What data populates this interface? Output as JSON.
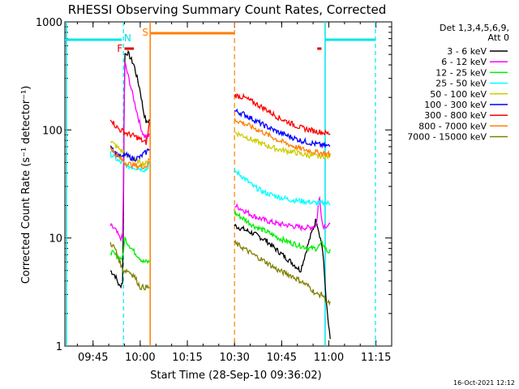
{
  "chart_data": {
    "type": "line",
    "title": "RHESSI Observing Summary Count Rates, Corrected",
    "xlabel": "Start Time (28-Sep-10 09:36:02)",
    "ylabel": "Corrected Count Rate (s⁻¹ detector⁻¹)",
    "yscale": "log",
    "ylim": [
      1,
      1000
    ],
    "xlim": [
      "09:36:02",
      "11:20:00"
    ],
    "x_ticks": [
      "09:45",
      "10:00",
      "10:15",
      "10:30",
      "10:45",
      "11:00",
      "11:15"
    ],
    "y_ticks": [
      "1",
      "10",
      "100",
      "1000"
    ],
    "footer_date": "16-Oct-2021 12:12",
    "legend": {
      "header": [
        "Det 1,3,4,5,6,9,",
        "Att 0"
      ],
      "placement": "right"
    },
    "flags": [
      {
        "label": "F",
        "color": "#dd0000"
      },
      {
        "label": "N",
        "color": "#00dddd"
      },
      {
        "label": "S",
        "color": "#ff7f00"
      }
    ],
    "markers": {
      "cyan_solid": [
        "09:36:30",
        "10:58:50"
      ],
      "cyan_dashed": [
        "09:54:40",
        "11:14:50"
      ],
      "orange_solid": [
        "10:03:10"
      ],
      "orange_dashed": [
        "10:30:00"
      ]
    },
    "series": [
      {
        "name": "3 - 6 keV",
        "color": "#000000",
        "segments": [
          {
            "t": [
              "09:50:30",
              "09:52:00",
              "09:53:30",
              "09:54:30",
              "09:55:00",
              "09:56:00",
              "09:58:00",
              "10:00:00",
              "10:01:00",
              "10:02:00",
              "10:03:00"
            ],
            "y": [
              5,
              4.5,
              3.5,
              4,
              500,
              520,
              400,
              230,
              150,
              115,
              125
            ]
          },
          {
            "t": [
              "10:30:00",
              "10:33:00",
              "10:36:00",
              "10:40:00",
              "10:44:00",
              "10:48:00",
              "10:51:00",
              "10:54:00",
              "10:56:00",
              "10:58:00",
              "10:59:30",
              "11:00:30"
            ],
            "y": [
              13,
              12,
              11,
              9.5,
              7.5,
              6,
              5,
              10,
              15,
              8,
              2,
              1.1
            ]
          }
        ]
      },
      {
        "name": "6 - 12 keV",
        "color": "#ff00ff",
        "segments": [
          {
            "t": [
              "09:50:30",
              "09:52:00",
              "09:53:30",
              "09:54:30",
              "09:55:00",
              "09:56:00",
              "09:58:00",
              "10:00:00",
              "10:01:00",
              "10:02:00",
              "10:03:00"
            ],
            "y": [
              13,
              12,
              10,
              10,
              430,
              330,
              190,
              110,
              90,
              85,
              90
            ]
          },
          {
            "t": [
              "10:30:00",
              "10:33:00",
              "10:36:00",
              "10:40:00",
              "10:44:00",
              "10:48:00",
              "10:51:00",
              "10:54:00",
              "10:56:00",
              "10:57:00",
              "10:58:00",
              "10:59:30",
              "11:00:30"
            ],
            "y": [
              20,
              18,
              16,
              14.5,
              13.5,
              13,
              12.5,
              12.5,
              13,
              25,
              13,
              13,
              13
            ]
          }
        ]
      },
      {
        "name": "12 - 25 keV",
        "color": "#00ee00",
        "segments": [
          {
            "t": [
              "09:50:30",
              "09:52:00",
              "09:53:30",
              "09:54:30",
              "09:55:00",
              "09:56:00",
              "09:58:00",
              "10:00:00",
              "10:01:00",
              "10:02:00",
              "10:03:00"
            ],
            "y": [
              7.5,
              7,
              6.5,
              6.5,
              10,
              9,
              7.5,
              6.5,
              6,
              6,
              6
            ]
          },
          {
            "t": [
              "10:30:00",
              "10:33:00",
              "10:36:00",
              "10:40:00",
              "10:44:00",
              "10:48:00",
              "10:51:00",
              "10:54:00",
              "10:56:00",
              "10:58:00",
              "10:59:30",
              "11:00:30"
            ],
            "y": [
              17,
              15,
              13,
              11.5,
              10,
              9,
              8.5,
              8,
              8,
              9,
              7.5,
              7.5
            ]
          }
        ]
      },
      {
        "name": "25 - 50 keV",
        "color": "#00ffff",
        "segments": [
          {
            "t": [
              "09:50:30",
              "09:52:00",
              "09:53:30",
              "09:54:30",
              "09:55:00",
              "09:56:00",
              "09:58:00",
              "10:00:00",
              "10:01:00",
              "10:02:00",
              "10:03:00"
            ],
            "y": [
              60,
              55,
              50,
              50,
              48,
              46,
              45,
              44,
              43,
              43,
              50
            ]
          },
          {
            "t": [
              "10:30:00",
              "10:33:00",
              "10:36:00",
              "10:40:00",
              "10:44:00",
              "10:48:00",
              "10:51:00",
              "10:54:00",
              "10:56:00",
              "10:58:00",
              "10:59:30",
              "11:00:30"
            ],
            "y": [
              42,
              36,
              30,
              26,
              24,
              22.5,
              22,
              21.5,
              21,
              21,
              21,
              21
            ]
          }
        ]
      },
      {
        "name": "50 - 100 keV",
        "color": "#cccc00",
        "segments": [
          {
            "t": [
              "09:50:30",
              "09:52:00",
              "09:53:30",
              "09:54:30",
              "09:55:00",
              "09:56:00",
              "09:58:00",
              "10:00:00",
              "10:01:00",
              "10:02:00",
              "10:03:00"
            ],
            "y": [
              80,
              72,
              66,
              63,
              60,
              57,
              53,
              50,
              49,
              49,
              52
            ]
          },
          {
            "t": [
              "10:30:00",
              "10:33:00",
              "10:36:00",
              "10:40:00",
              "10:44:00",
              "10:48:00",
              "10:51:00",
              "10:54:00",
              "10:56:00",
              "10:58:00",
              "10:59:30",
              "11:00:30"
            ],
            "y": [
              95,
              88,
              80,
              72,
              66,
              63,
              60,
              58,
              57,
              57,
              57,
              57
            ]
          }
        ]
      },
      {
        "name": "100 - 300 keV",
        "color": "#0000ff",
        "segments": [
          {
            "t": [
              "09:50:30",
              "09:52:00",
              "09:53:30",
              "09:54:30",
              "09:55:00",
              "09:56:00",
              "09:58:00",
              "10:00:00",
              "10:01:00",
              "10:02:00",
              "10:03:00"
            ],
            "y": [
              75,
              62,
              57,
              55,
              60,
              57,
              54,
              56,
              60,
              62,
              70
            ]
          },
          {
            "t": [
              "10:30:00",
              "10:33:00",
              "10:36:00",
              "10:40:00",
              "10:44:00",
              "10:48:00",
              "10:51:00",
              "10:54:00",
              "10:56:00",
              "10:58:00",
              "10:59:30",
              "11:00:30"
            ],
            "y": [
              150,
              140,
              125,
              108,
              95,
              86,
              80,
              76,
              74,
              72,
              71,
              71
            ]
          }
        ]
      },
      {
        "name": "300 - 800 keV",
        "color": "#ff0000",
        "segments": [
          {
            "t": [
              "09:50:30",
              "09:52:00",
              "09:53:30",
              "09:54:30",
              "09:55:00",
              "09:56:00",
              "09:58:00",
              "10:00:00",
              "10:01:00",
              "10:02:00",
              "10:03:00"
            ],
            "y": [
              130,
              110,
              100,
              98,
              95,
              92,
              88,
              82,
              78,
              76,
              120
            ]
          },
          {
            "t": [
              "10:30:00",
              "10:33:00",
              "10:36:00",
              "10:40:00",
              "10:44:00",
              "10:48:00",
              "10:51:00",
              "10:54:00",
              "10:56:00",
              "10:58:00",
              "10:59:30",
              "11:00:30"
            ],
            "y": [
              210,
              200,
              180,
              155,
              130,
              115,
              105,
              100,
              97,
              95,
              93,
              93
            ]
          }
        ]
      },
      {
        "name": "800 - 7000 keV",
        "color": "#ff7f00",
        "segments": [
          {
            "t": [
              "09:50:30",
              "09:52:00",
              "09:53:30",
              "09:54:30",
              "09:55:00",
              "09:56:00",
              "09:58:00",
              "10:00:00",
              "10:01:00",
              "10:02:00",
              "10:03:00"
            ],
            "y": [
              70,
              60,
              55,
              52,
              50,
              49,
              47,
              46,
              46,
              46,
              55
            ]
          },
          {
            "t": [
              "10:30:00",
              "10:33:00",
              "10:36:00",
              "10:40:00",
              "10:44:00",
              "10:48:00",
              "10:51:00",
              "10:54:00",
              "10:56:00",
              "10:58:00",
              "10:59:30",
              "11:00:30"
            ],
            "y": [
              125,
              115,
              105,
              92,
              80,
              72,
              67,
              64,
              62,
              61,
              60,
              60
            ]
          }
        ]
      },
      {
        "name": "7000 - 15000 keV",
        "color": "#808000",
        "segments": [
          {
            "t": [
              "09:50:30",
              "09:52:00",
              "09:53:30",
              "09:54:30",
              "09:55:00",
              "09:56:00",
              "09:58:00",
              "10:00:00",
              "10:01:00",
              "10:02:00",
              "10:03:00"
            ],
            "y": [
              9,
              8,
              6,
              5,
              5,
              5,
              4.5,
              3.5,
              3.5,
              3.5,
              3.5
            ]
          },
          {
            "t": [
              "10:30:00",
              "10:33:00",
              "10:36:00",
              "10:40:00",
              "10:44:00",
              "10:48:00",
              "10:51:00",
              "10:54:00",
              "10:56:00",
              "10:58:00",
              "10:59:30",
              "11:00:30"
            ],
            "y": [
              9,
              8,
              7,
              6,
              5,
              4.5,
              4,
              3.5,
              3,
              3,
              2.5,
              2.5
            ]
          }
        ]
      }
    ]
  }
}
